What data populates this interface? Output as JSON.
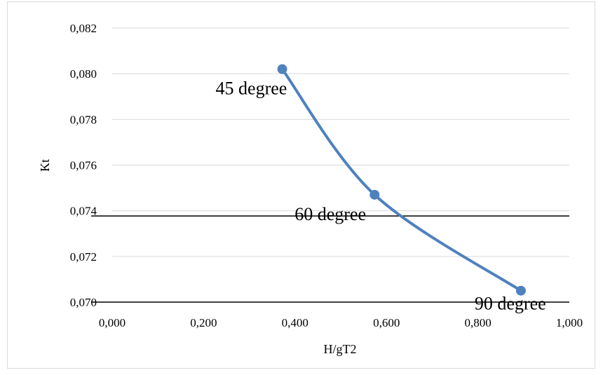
{
  "chart_data": {
    "type": "scatter",
    "xlabel": "H/gT2",
    "ylabel": "Kt",
    "xlim": [
      0,
      1
    ],
    "ylim": [
      0.07,
      0.082
    ],
    "x_ticks": [
      "0,000",
      "0,200",
      "0,400",
      "0,600",
      "0,800",
      "1,000"
    ],
    "y_ticks": [
      "0,070",
      "0,072",
      "0,074",
      "0,076",
      "0,078",
      "0,080",
      "0,082"
    ],
    "grid": "horizontal",
    "line_color": "#4f81bd",
    "series": [
      {
        "smooth": true,
        "points": [
          {
            "x": 0.372,
            "y": 0.0802,
            "label": "45 degree"
          },
          {
            "x": 0.574,
            "y": 0.0747,
            "label": "60 degree"
          },
          {
            "x": 0.894,
            "y": 0.0705,
            "label": "90 degree"
          }
        ]
      }
    ],
    "reference_lines": [
      {
        "y": 0.07377
      },
      {
        "y": 0.07
      }
    ]
  }
}
